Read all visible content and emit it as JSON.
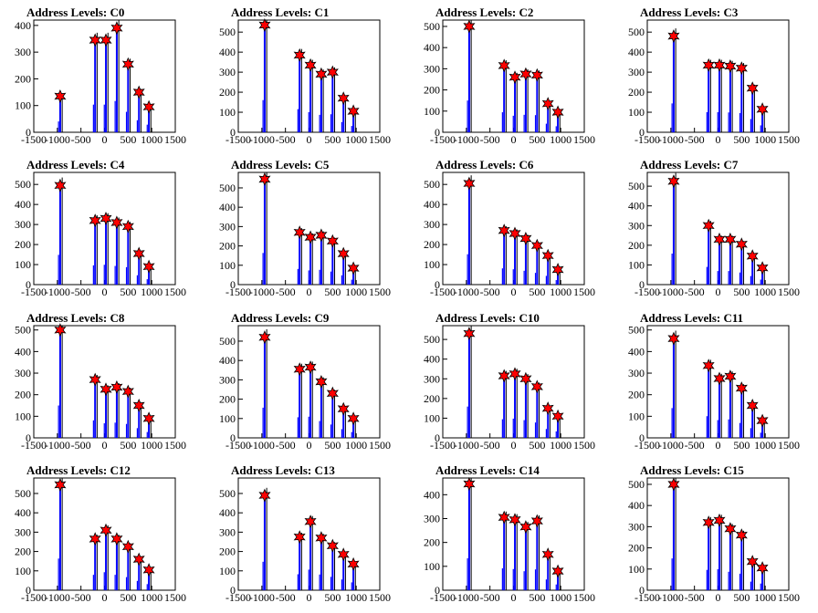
{
  "x_ticks": [
    -1500,
    -1000,
    -500,
    0,
    500,
    1000,
    1500
  ],
  "colors": {
    "bar": "#0000ff",
    "outline": "#000000",
    "marker": "#ff0000"
  },
  "chart_data": [
    {
      "type": "bar",
      "title": "Address Levels: C0",
      "xlim": [
        -1500,
        1500
      ],
      "ylim": [
        0,
        420
      ],
      "y_ticks": [
        0,
        100,
        200,
        300,
        400
      ],
      "peaks": [
        {
          "x": -940,
          "y": 135
        },
        {
          "x": -200,
          "y": 345
        },
        {
          "x": 30,
          "y": 345
        },
        {
          "x": 260,
          "y": 390
        },
        {
          "x": 500,
          "y": 255
        },
        {
          "x": 730,
          "y": 150
        },
        {
          "x": 940,
          "y": 95
        }
      ]
    },
    {
      "type": "bar",
      "title": "Address Levels: C1",
      "xlim": [
        -1500,
        1500
      ],
      "ylim": [
        0,
        560
      ],
      "y_ticks": [
        0,
        100,
        200,
        300,
        400,
        500
      ],
      "peaks": [
        {
          "x": -940,
          "y": 535
        },
        {
          "x": -200,
          "y": 385
        },
        {
          "x": 30,
          "y": 335
        },
        {
          "x": 260,
          "y": 290
        },
        {
          "x": 500,
          "y": 300
        },
        {
          "x": 730,
          "y": 170
        },
        {
          "x": 940,
          "y": 105
        }
      ]
    },
    {
      "type": "bar",
      "title": "Address Levels: C2",
      "xlim": [
        -1500,
        1500
      ],
      "ylim": [
        0,
        530
      ],
      "y_ticks": [
        0,
        100,
        200,
        300,
        400,
        500
      ],
      "peaks": [
        {
          "x": -940,
          "y": 500
        },
        {
          "x": -200,
          "y": 315
        },
        {
          "x": 30,
          "y": 260
        },
        {
          "x": 260,
          "y": 275
        },
        {
          "x": 500,
          "y": 270
        },
        {
          "x": 730,
          "y": 135
        },
        {
          "x": 940,
          "y": 95
        }
      ]
    },
    {
      "type": "bar",
      "title": "Address Levels: C3",
      "xlim": [
        -1500,
        1500
      ],
      "ylim": [
        0,
        560
      ],
      "y_ticks": [
        0,
        100,
        200,
        300,
        400,
        500
      ],
      "peaks": [
        {
          "x": -940,
          "y": 480
        },
        {
          "x": -200,
          "y": 335
        },
        {
          "x": 30,
          "y": 335
        },
        {
          "x": 260,
          "y": 330
        },
        {
          "x": 500,
          "y": 320
        },
        {
          "x": 730,
          "y": 220
        },
        {
          "x": 940,
          "y": 115
        }
      ]
    },
    {
      "type": "bar",
      "title": "Address Levels: C4",
      "xlim": [
        -1500,
        1500
      ],
      "ylim": [
        0,
        560
      ],
      "y_ticks": [
        0,
        100,
        200,
        300,
        400,
        500
      ],
      "peaks": [
        {
          "x": -940,
          "y": 495
        },
        {
          "x": -200,
          "y": 320
        },
        {
          "x": 30,
          "y": 330
        },
        {
          "x": 260,
          "y": 310
        },
        {
          "x": 500,
          "y": 290
        },
        {
          "x": 730,
          "y": 155
        },
        {
          "x": 940,
          "y": 90
        }
      ]
    },
    {
      "type": "bar",
      "title": "Address Levels: C5",
      "xlim": [
        -1500,
        1500
      ],
      "ylim": [
        0,
        580
      ],
      "y_ticks": [
        0,
        100,
        200,
        300,
        400,
        500
      ],
      "peaks": [
        {
          "x": -940,
          "y": 545
        },
        {
          "x": -200,
          "y": 270
        },
        {
          "x": 30,
          "y": 245
        },
        {
          "x": 260,
          "y": 255
        },
        {
          "x": 500,
          "y": 225
        },
        {
          "x": 730,
          "y": 160
        },
        {
          "x": 940,
          "y": 85
        }
      ]
    },
    {
      "type": "bar",
      "title": "Address Levels: C6",
      "xlim": [
        -1500,
        1500
      ],
      "ylim": [
        0,
        560
      ],
      "y_ticks": [
        0,
        100,
        200,
        300,
        400,
        500
      ],
      "peaks": [
        {
          "x": -940,
          "y": 505
        },
        {
          "x": -200,
          "y": 270
        },
        {
          "x": 30,
          "y": 255
        },
        {
          "x": 260,
          "y": 230
        },
        {
          "x": 500,
          "y": 195
        },
        {
          "x": 730,
          "y": 145
        },
        {
          "x": 940,
          "y": 75
        }
      ]
    },
    {
      "type": "bar",
      "title": "Address Levels: C7",
      "xlim": [
        -1500,
        1500
      ],
      "ylim": [
        0,
        570
      ],
      "y_ticks": [
        0,
        100,
        200,
        300,
        400,
        500
      ],
      "peaks": [
        {
          "x": -940,
          "y": 525
        },
        {
          "x": -200,
          "y": 300
        },
        {
          "x": 30,
          "y": 230
        },
        {
          "x": 260,
          "y": 230
        },
        {
          "x": 500,
          "y": 205
        },
        {
          "x": 730,
          "y": 145
        },
        {
          "x": 940,
          "y": 85
        }
      ]
    },
    {
      "type": "bar",
      "title": "Address Levels: C8",
      "xlim": [
        -1500,
        1500
      ],
      "ylim": [
        0,
        520
      ],
      "y_ticks": [
        0,
        100,
        200,
        300,
        400,
        500
      ],
      "peaks": [
        {
          "x": -940,
          "y": 500
        },
        {
          "x": -200,
          "y": 270
        },
        {
          "x": 30,
          "y": 225
        },
        {
          "x": 260,
          "y": 235
        },
        {
          "x": 500,
          "y": 215
        },
        {
          "x": 730,
          "y": 150
        },
        {
          "x": 940,
          "y": 90
        }
      ]
    },
    {
      "type": "bar",
      "title": "Address Levels: C9",
      "xlim": [
        -1500,
        1500
      ],
      "ylim": [
        0,
        580
      ],
      "y_ticks": [
        0,
        100,
        200,
        300,
        400,
        500
      ],
      "peaks": [
        {
          "x": -940,
          "y": 520
        },
        {
          "x": -200,
          "y": 355
        },
        {
          "x": 30,
          "y": 365
        },
        {
          "x": 260,
          "y": 290
        },
        {
          "x": 500,
          "y": 230
        },
        {
          "x": 730,
          "y": 150
        },
        {
          "x": 940,
          "y": 100
        }
      ]
    },
    {
      "type": "bar",
      "title": "Address Levels: C10",
      "xlim": [
        -1500,
        1500
      ],
      "ylim": [
        0,
        570
      ],
      "y_ticks": [
        0,
        100,
        200,
        300,
        400,
        500
      ],
      "peaks": [
        {
          "x": -940,
          "y": 530
        },
        {
          "x": -200,
          "y": 315
        },
        {
          "x": 30,
          "y": 325
        },
        {
          "x": 260,
          "y": 300
        },
        {
          "x": 500,
          "y": 260
        },
        {
          "x": 730,
          "y": 150
        },
        {
          "x": 940,
          "y": 110
        }
      ]
    },
    {
      "type": "bar",
      "title": "Address Levels: C11",
      "xlim": [
        -1500,
        1500
      ],
      "ylim": [
        0,
        520
      ],
      "y_ticks": [
        0,
        100,
        200,
        300,
        400,
        500
      ],
      "peaks": [
        {
          "x": -940,
          "y": 460
        },
        {
          "x": -200,
          "y": 335
        },
        {
          "x": 30,
          "y": 275
        },
        {
          "x": 260,
          "y": 285
        },
        {
          "x": 500,
          "y": 230
        },
        {
          "x": 730,
          "y": 150
        },
        {
          "x": 940,
          "y": 80
        }
      ]
    },
    {
      "type": "bar",
      "title": "Address Levels: C12",
      "xlim": [
        -1500,
        1500
      ],
      "ylim": [
        0,
        580
      ],
      "y_ticks": [
        0,
        100,
        200,
        300,
        400,
        500
      ],
      "peaks": [
        {
          "x": -940,
          "y": 545
        },
        {
          "x": -200,
          "y": 265
        },
        {
          "x": 30,
          "y": 310
        },
        {
          "x": 260,
          "y": 265
        },
        {
          "x": 500,
          "y": 225
        },
        {
          "x": 730,
          "y": 160
        },
        {
          "x": 940,
          "y": 105
        }
      ]
    },
    {
      "type": "bar",
      "title": "Address Levels: C13",
      "xlim": [
        -1500,
        1500
      ],
      "ylim": [
        0,
        580
      ],
      "y_ticks": [
        0,
        100,
        200,
        300,
        400,
        500
      ],
      "peaks": [
        {
          "x": -940,
          "y": 490
        },
        {
          "x": -200,
          "y": 275
        },
        {
          "x": 30,
          "y": 355
        },
        {
          "x": 260,
          "y": 270
        },
        {
          "x": 500,
          "y": 230
        },
        {
          "x": 730,
          "y": 185
        },
        {
          "x": 940,
          "y": 135
        }
      ]
    },
    {
      "type": "bar",
      "title": "Address Levels: C14",
      "xlim": [
        -1500,
        1500
      ],
      "ylim": [
        0,
        470
      ],
      "y_ticks": [
        0,
        100,
        200,
        300,
        400
      ],
      "peaks": [
        {
          "x": -940,
          "y": 445
        },
        {
          "x": -200,
          "y": 305
        },
        {
          "x": 30,
          "y": 295
        },
        {
          "x": 260,
          "y": 265
        },
        {
          "x": 500,
          "y": 290
        },
        {
          "x": 730,
          "y": 150
        },
        {
          "x": 940,
          "y": 80
        }
      ]
    },
    {
      "type": "bar",
      "title": "Address Levels: C15",
      "xlim": [
        -1500,
        1500
      ],
      "ylim": [
        0,
        530
      ],
      "y_ticks": [
        0,
        100,
        200,
        300,
        400,
        500
      ],
      "peaks": [
        {
          "x": -940,
          "y": 500
        },
        {
          "x": -200,
          "y": 320
        },
        {
          "x": 30,
          "y": 330
        },
        {
          "x": 260,
          "y": 290
        },
        {
          "x": 500,
          "y": 260
        },
        {
          "x": 730,
          "y": 135
        },
        {
          "x": 940,
          "y": 105
        }
      ]
    }
  ]
}
